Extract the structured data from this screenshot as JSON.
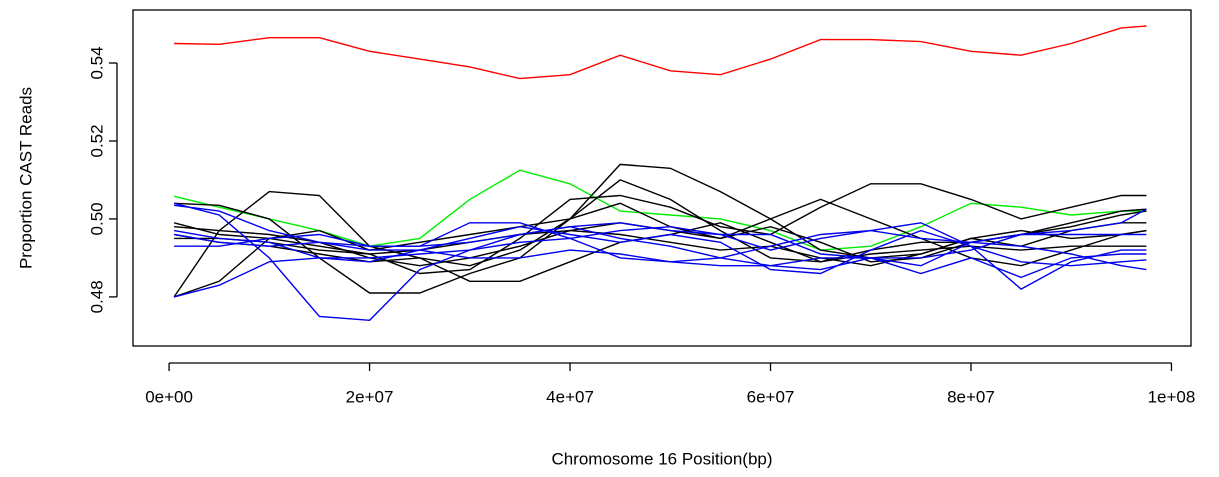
{
  "chart_data": {
    "type": "line",
    "x_label": "Chromosome 16 Position(bp)",
    "y_label": "Proportion CAST Reads",
    "x": [
      500000,
      5000000,
      10000000,
      15000000,
      20000000,
      25000000,
      30000000,
      35000000,
      40000000,
      45000000,
      50000000,
      55000000,
      60000000,
      65000000,
      70000000,
      75000000,
      80000000,
      85000000,
      90000000,
      95000000,
      97500000
    ],
    "xlim": [
      -3600000,
      101950000
    ],
    "ylim": [
      0.4674,
      0.5536
    ],
    "xticks": [
      {
        "value": 0,
        "label": "0e+00"
      },
      {
        "value": 20000000,
        "label": "2e+07"
      },
      {
        "value": 40000000,
        "label": "4e+07"
      },
      {
        "value": 60000000,
        "label": "6e+07"
      },
      {
        "value": 80000000,
        "label": "8e+07"
      },
      {
        "value": 100000000,
        "label": "1e+08"
      }
    ],
    "yticks": [
      0.48,
      {
        "value": 0.5,
        "label": "0.50"
      },
      0.52,
      0.54
    ],
    "series": [
      {
        "color": "#ff0000",
        "values": [
          0.545,
          0.5448,
          0.5465,
          0.5465,
          0.543,
          0.541,
          0.539,
          0.536,
          0.537,
          0.542,
          0.538,
          0.537,
          0.541,
          0.546,
          0.546,
          0.5455,
          0.543,
          0.542,
          0.545,
          0.549,
          0.5495
        ]
      },
      {
        "color": "#00ee00",
        "values": [
          0.5058,
          0.503,
          0.5,
          0.497,
          0.493,
          0.495,
          0.505,
          0.5125,
          0.509,
          0.502,
          0.501,
          0.5,
          0.497,
          0.492,
          0.493,
          0.498,
          0.504,
          0.503,
          0.501,
          0.502,
          0.502
        ]
      },
      {
        "color": "#000000",
        "values": [
          0.504,
          0.5035,
          0.5,
          0.49,
          0.481,
          0.481,
          0.486,
          0.49,
          0.5,
          0.51,
          0.505,
          0.497,
          0.49,
          0.489,
          0.492,
          0.494,
          0.494,
          0.496,
          0.499,
          0.502,
          0.5025
        ]
      },
      {
        "color": "#000000",
        "values": [
          0.48,
          0.497,
          0.507,
          0.506,
          0.493,
          0.49,
          0.488,
          0.492,
          0.5,
          0.514,
          0.513,
          0.507,
          0.5,
          0.492,
          0.49,
          0.491,
          0.495,
          0.493,
          0.497,
          0.499,
          0.499
        ]
      },
      {
        "color": "#000000",
        "values": [
          0.499,
          0.496,
          0.495,
          0.493,
          0.491,
          0.486,
          0.487,
          0.495,
          0.505,
          0.506,
          0.503,
          0.498,
          0.496,
          0.503,
          0.509,
          0.509,
          0.505,
          0.5,
          0.503,
          0.506,
          0.506
        ]
      },
      {
        "color": "#000000",
        "values": [
          0.48,
          0.484,
          0.495,
          0.497,
          0.492,
          0.494,
          0.496,
          0.498,
          0.5,
          0.504,
          0.498,
          0.495,
          0.5,
          0.505,
          0.5,
          0.495,
          0.49,
          0.488,
          0.492,
          0.496,
          0.497
        ]
      },
      {
        "color": "#000000",
        "values": [
          0.496,
          0.494,
          0.493,
          0.491,
          0.489,
          0.49,
          0.484,
          0.484,
          0.489,
          0.494,
          0.496,
          0.499,
          0.494,
          0.489,
          0.491,
          0.492,
          0.493,
          0.492,
          0.493,
          0.493,
          0.493
        ]
      },
      {
        "color": "#000000",
        "values": [
          0.498,
          0.497,
          0.496,
          0.494,
          0.49,
          0.488,
          0.49,
          0.493,
          0.497,
          0.499,
          0.497,
          0.495,
          0.498,
          0.494,
          0.489,
          0.49,
          0.494,
          0.496,
          0.498,
          0.501,
          0.502
        ]
      },
      {
        "color": "#000000",
        "values": [
          0.495,
          0.495,
          0.494,
          0.492,
          0.491,
          0.492,
          0.494,
          0.496,
          0.497,
          0.496,
          0.494,
          0.492,
          0.493,
          0.49,
          0.488,
          0.491,
          0.495,
          0.497,
          0.495,
          0.496,
          0.497
        ]
      },
      {
        "color": "#0000ee",
        "values": [
          0.504,
          0.501,
          0.49,
          0.475,
          0.474,
          0.487,
          0.492,
          0.496,
          0.498,
          0.495,
          0.493,
          0.49,
          0.488,
          0.487,
          0.49,
          0.486,
          0.49,
          0.485,
          0.49,
          0.491,
          0.491
        ]
      },
      {
        "color": "#0000ee",
        "values": [
          0.497,
          0.495,
          0.494,
          0.49,
          0.489,
          0.492,
          0.495,
          0.498,
          0.496,
          0.494,
          0.496,
          0.494,
          0.487,
          0.486,
          0.492,
          0.497,
          0.493,
          0.482,
          0.489,
          0.492,
          0.492
        ]
      },
      {
        "color": "#0000ee",
        "values": [
          0.48,
          0.483,
          0.489,
          0.49,
          0.49,
          0.491,
          0.492,
          0.494,
          0.495,
          0.497,
          0.498,
          0.496,
          0.492,
          0.495,
          0.497,
          0.499,
          0.493,
          0.489,
          0.488,
          0.489,
          0.4895
        ]
      },
      {
        "color": "#0000ee",
        "values": [
          0.493,
          0.493,
          0.495,
          0.496,
          0.493,
          0.493,
          0.499,
          0.499,
          0.495,
          0.49,
          0.489,
          0.49,
          0.493,
          0.496,
          0.497,
          0.495,
          0.494,
          0.493,
          0.491,
          0.488,
          0.487
        ]
      },
      {
        "color": "#0000ee",
        "values": [
          0.496,
          0.494,
          0.493,
          0.494,
          0.492,
          0.492,
          0.49,
          0.49,
          0.492,
          0.491,
          0.489,
          0.488,
          0.488,
          0.49,
          0.49,
          0.488,
          0.494,
          0.496,
          0.496,
          0.496,
          0.496
        ]
      },
      {
        "color": "#0000ee",
        "values": [
          0.5035,
          0.502,
          0.497,
          0.494,
          0.493,
          0.493,
          0.494,
          0.496,
          0.498,
          0.499,
          0.497,
          0.496,
          0.496,
          0.491,
          0.49,
          0.49,
          0.492,
          0.496,
          0.497,
          0.499,
          0.5025
        ]
      }
    ]
  }
}
